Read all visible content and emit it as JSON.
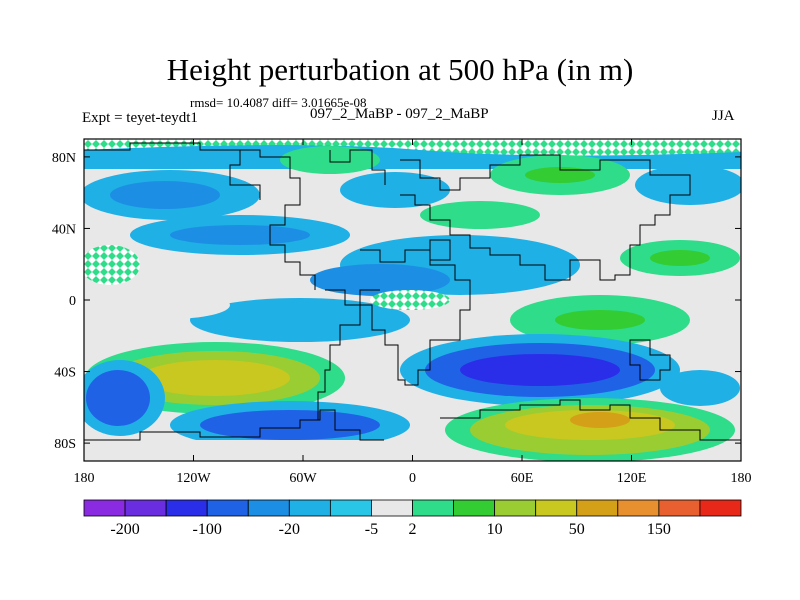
{
  "title": "Height perturbation at 500 hPa (in m)",
  "stats_line": "rmsd= 10.4087 diff= 3.01665e-08",
  "left_label": "Expt = teyet-teydt1",
  "center_label": "097_2_MaBP - 097_2_MaBP",
  "right_label": "JJA",
  "map": {
    "projection": "cylindrical-equidistant",
    "lon_range": [
      -180,
      180
    ],
    "lat_range": [
      -90,
      90
    ],
    "lat_ticks": [
      {
        "value": 80,
        "label": "80N"
      },
      {
        "value": 40,
        "label": "40N"
      },
      {
        "value": 0,
        "label": "0"
      },
      {
        "value": -40,
        "label": "40S"
      },
      {
        "value": -80,
        "label": "80S"
      }
    ],
    "lon_ticks": [
      {
        "value": -180,
        "label": "180"
      },
      {
        "value": -120,
        "label": "120W"
      },
      {
        "value": -60,
        "label": "60W"
      },
      {
        "value": 0,
        "label": "0"
      },
      {
        "value": 60,
        "label": "60E"
      },
      {
        "value": 120,
        "label": "120E"
      },
      {
        "value": 180,
        "label": "180"
      }
    ]
  },
  "colorbar": {
    "colors": [
      "#8a2be2",
      "#6a2ee0",
      "#2b2ee8",
      "#1f62e6",
      "#1c8fe4",
      "#1fb0e6",
      "#29c6e8",
      "#e8e8e8",
      "#2edc8a",
      "#33cc33",
      "#9acd32",
      "#c8c820",
      "#d4a017",
      "#e89030",
      "#e86030",
      "#e82818"
    ],
    "labels": [
      {
        "after_box": 1,
        "text": "-200"
      },
      {
        "after_box": 3,
        "text": "-100"
      },
      {
        "after_box": 5,
        "text": "-20"
      },
      {
        "after_box": 7,
        "text": "-5"
      },
      {
        "after_box": 8,
        "text": "2"
      },
      {
        "after_box": 10,
        "text": "10"
      },
      {
        "after_box": 12,
        "text": "50"
      },
      {
        "after_box": 14,
        "text": "150"
      }
    ]
  }
}
